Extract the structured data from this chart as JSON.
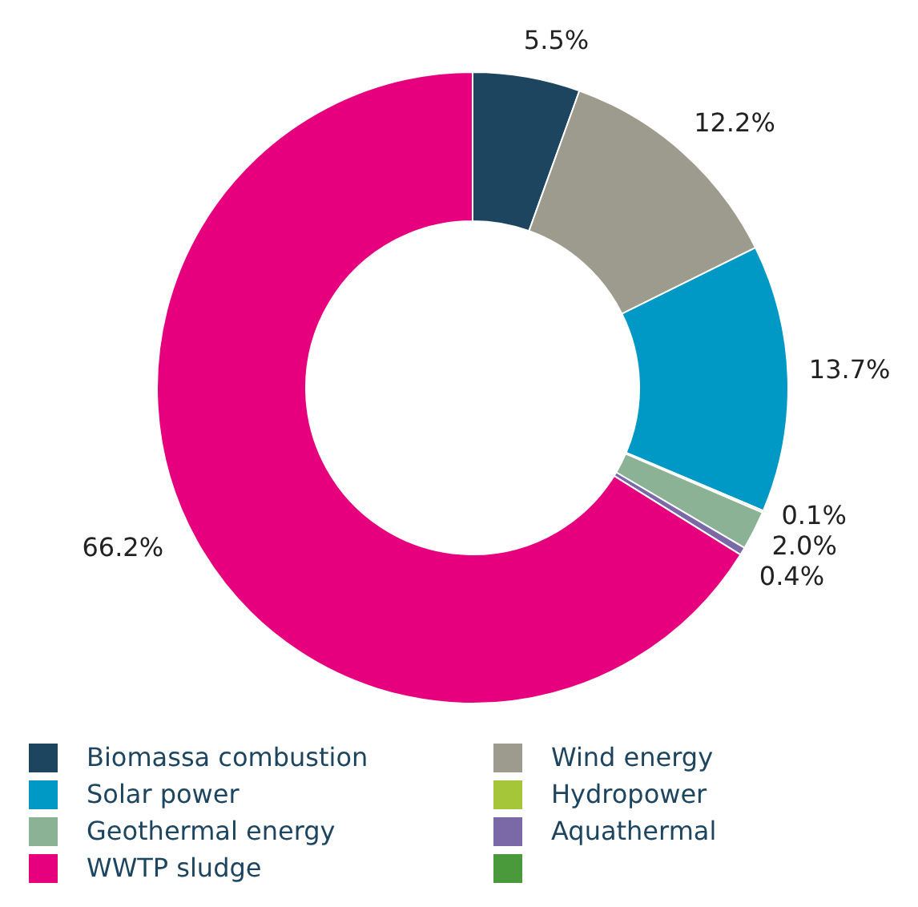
{
  "chart_data": {
    "type": "donut",
    "categories": [
      "Biomassa combustion",
      "Wind energy",
      "Solar power",
      "Hydropower",
      "Geothermal energy",
      "Aquathermal",
      "WWTP sludge",
      null
    ],
    "values": [
      5.5,
      12.2,
      13.7,
      0.1,
      2.0,
      0.4,
      66.2,
      0
    ],
    "value_labels": [
      "5.5%",
      "12.2%",
      "13.7%",
      "0.1%",
      "2.0%",
      "0.4%",
      "66.2%",
      null
    ],
    "colors": [
      "#1d4560",
      "#9c9b8d",
      "#0099c6",
      "#a5c639",
      "#8bb294",
      "#7b68a6",
      "#e6007e",
      "#4a9a3c"
    ],
    "legend": "bottom"
  }
}
